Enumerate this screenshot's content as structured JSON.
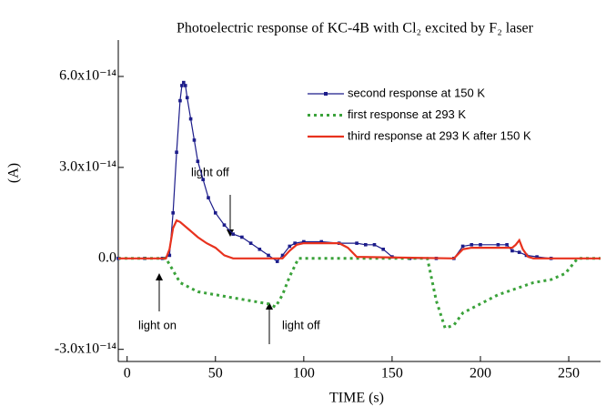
{
  "chart_data": {
    "type": "line",
    "title": "Photoelectric response of KC-4B with Cl₂ excited by F₂ laser",
    "xlabel": "TIME (s)",
    "ylabel": "(A)",
    "xlim": [
      -5,
      268
    ],
    "ylim": [
      -3.4e-14,
      7.2e-14
    ],
    "xticks": [
      0,
      50,
      100,
      150,
      200,
      250
    ],
    "yticks": [
      {
        "value": -3e-14,
        "label": "-3.0x10⁻¹⁴"
      },
      {
        "value": 0,
        "label": "0.0"
      },
      {
        "value": 3e-14,
        "label": "3.0x10⁻¹⁴"
      },
      {
        "value": 6e-14,
        "label": "6.0x10⁻¹⁴"
      }
    ],
    "legend": "upper right",
    "series": [
      {
        "name": "second response at 150 K",
        "color": "#1c1c8a",
        "style": "solid-markers",
        "x": [
          -5,
          10,
          20,
          24,
          26,
          28,
          30,
          31,
          32,
          33,
          34,
          36,
          38,
          40,
          43,
          46,
          50,
          55,
          60,
          65,
          70,
          75,
          80,
          85,
          88,
          92,
          95,
          100,
          110,
          120,
          130,
          135,
          140,
          145,
          150,
          160,
          175,
          185,
          190,
          195,
          200,
          210,
          215,
          218,
          222,
          226,
          232,
          240
        ],
        "values": [
          0,
          0,
          0,
          1e-15,
          1.5e-14,
          3.5e-14,
          5.2e-14,
          5.7e-14,
          5.8e-14,
          5.7e-14,
          5.3e-14,
          4.6e-14,
          3.9e-14,
          3.2e-14,
          2.6e-14,
          2e-14,
          1.5e-14,
          1.1e-14,
          8e-15,
          7e-15,
          5e-15,
          3e-15,
          1e-15,
          -1e-15,
          1e-15,
          4e-15,
          5e-15,
          5.5e-15,
          5.5e-15,
          5e-15,
          5e-15,
          4.5e-15,
          4.5e-15,
          3e-15,
          5e-16,
          0,
          0,
          0,
          4e-15,
          4.5e-15,
          4.5e-15,
          4.5e-15,
          4.5e-15,
          2.5e-15,
          2e-15,
          1e-15,
          5e-16,
          0
        ]
      },
      {
        "name": "first response at 293 K",
        "color": "#3aa23a",
        "style": "dotted",
        "x": [
          -5,
          22,
          26,
          30,
          40,
          50,
          60,
          70,
          80,
          84,
          88,
          92,
          97,
          120,
          150,
          170,
          175,
          180,
          185,
          190,
          200,
          210,
          220,
          230,
          240,
          248,
          255,
          268
        ],
        "values": [
          0,
          0,
          -4e-15,
          -8e-15,
          -1.1e-14,
          -1.2e-14,
          -1.3e-14,
          -1.4e-14,
          -1.5e-14,
          -1.6e-14,
          -1.2e-14,
          -6e-15,
          0,
          0,
          0,
          0,
          -1.4e-14,
          -2.3e-14,
          -2.2e-14,
          -1.8e-14,
          -1.5e-14,
          -1.2e-14,
          -1e-14,
          -8e-15,
          -7e-15,
          -5e-15,
          0,
          0
        ]
      },
      {
        "name": "third response at 293 K after 150 K",
        "color": "#e8321e",
        "style": "solid",
        "x": [
          -5,
          22,
          24,
          26,
          28,
          30,
          35,
          40,
          45,
          50,
          55,
          60,
          88,
          92,
          96,
          100,
          110,
          120,
          125,
          130,
          185,
          190,
          195,
          200,
          210,
          218,
          220,
          222,
          224,
          227,
          230,
          268
        ],
        "values": [
          0,
          0,
          3e-15,
          1e-14,
          1.25e-14,
          1.2e-14,
          9.5e-15,
          7e-15,
          5e-15,
          3.5e-15,
          1e-15,
          0,
          0,
          2.5e-15,
          4.5e-15,
          5e-15,
          5e-15,
          5e-15,
          3.5e-15,
          5e-16,
          0,
          3e-15,
          3.5e-15,
          3.5e-15,
          3.5e-15,
          3.5e-15,
          4.5e-15,
          6e-15,
          3e-15,
          5e-16,
          0,
          0
        ]
      }
    ],
    "annotations": [
      "light off",
      "light on",
      "light off"
    ]
  }
}
